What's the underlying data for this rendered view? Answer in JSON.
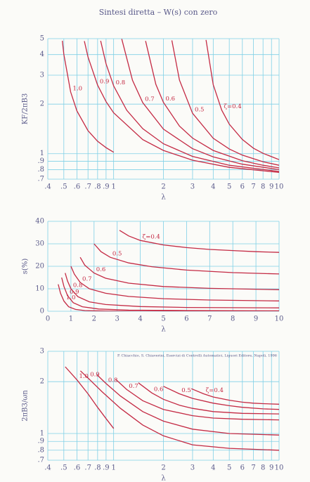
{
  "chart_data": [
    {
      "type": "line",
      "title": "Sintesi diretta – W(s) con zero",
      "xlabel": "λ",
      "ylabel": "KF/2πB3",
      "xscale": "log",
      "yscale": "log",
      "grid": true,
      "color": "#c42a44",
      "xlim": [
        0.4,
        10
      ],
      "ylim": [
        0.7,
        5
      ],
      "xticks": [
        {
          "value": 0.4,
          "label": ".4"
        },
        {
          "value": 0.5,
          "label": ".5"
        },
        {
          "value": 0.6,
          "label": ".6"
        },
        {
          "value": 0.7,
          "label": ".7"
        },
        {
          "value": 0.8,
          "label": ".8"
        },
        {
          "value": 0.9,
          "label": ".9"
        },
        1,
        2,
        3,
        4,
        5,
        6,
        7,
        8,
        9,
        10
      ],
      "yticks": [
        {
          "value": 0.7,
          "label": ".7"
        },
        {
          "value": 0.8,
          "label": ".8"
        },
        {
          "value": 0.9,
          "label": ".9"
        },
        1,
        2,
        3,
        4,
        5
      ],
      "series": [
        {
          "name": "ζ=0.4",
          "x": [
            3.62,
            4,
            4.5,
            5,
            6,
            7,
            8,
            10
          ],
          "values": [
            4.91,
            2.63,
            1.84,
            1.51,
            1.22,
            1.08,
            1.005,
            0.92
          ]
        },
        {
          "name": "0.5",
          "x": [
            2.25,
            2.5,
            3,
            4,
            5,
            6,
            8,
            10
          ],
          "values": [
            4.88,
            2.8,
            1.76,
            1.24,
            1.067,
            0.98,
            0.893,
            0.85
          ]
        },
        {
          "name": "0.6",
          "x": [
            1.56,
            1.8,
            2,
            2.5,
            3,
            4,
            6,
            8,
            10
          ],
          "values": [
            4.84,
            2.64,
            2.05,
            1.47,
            1.244,
            1.046,
            0.906,
            0.85,
            0.82
          ]
        },
        {
          "name": "0.7",
          "x": [
            1.12,
            1.3,
            1.5,
            2,
            3,
            4,
            6,
            10
          ],
          "values": [
            4.98,
            2.79,
            2.04,
            1.41,
            1.073,
            0.957,
            0.863,
            0.8
          ]
        },
        {
          "name": "0.8",
          "x": [
            0.835,
            0.9,
            1,
            1.2,
            1.5,
            2,
            3,
            5,
            10
          ],
          "values": [
            4.85,
            3.51,
            2.58,
            1.836,
            1.418,
            1.149,
            0.963,
            0.85,
            0.78
          ]
        },
        {
          "name": "0.9",
          "x": [
            0.665,
            0.7,
            0.8,
            0.9,
            1,
            1.5,
            2,
            3,
            5,
            10
          ],
          "values": [
            4.83,
            3.87,
            2.61,
            2.07,
            1.77,
            1.217,
            1.046,
            0.913,
            0.826,
            0.77
          ]
        },
        {
          "name": "1.0",
          "x": [
            0.49,
            0.5,
            0.55,
            0.6,
            0.7,
            0.8,
            0.9,
            1
          ],
          "values": [
            4.85,
            4.02,
            2.37,
            1.82,
            1.38,
            1.19,
            1.087,
            1.02
          ]
        }
      ]
    },
    {
      "type": "line",
      "xlabel": "λ",
      "ylabel": "s(%)",
      "xscale": "linear",
      "yscale": "linear",
      "grid": true,
      "color": "#c42a44",
      "xlim": [
        0,
        10
      ],
      "ylim": [
        0,
        40
      ],
      "xticks": [
        0,
        1,
        2,
        3,
        4,
        5,
        6,
        7,
        8,
        9,
        10
      ],
      "yticks": [
        0,
        10,
        20,
        30,
        40
      ],
      "series": [
        {
          "name": "ζ=0.4",
          "x": [
            3.1,
            3.5,
            4,
            5,
            6,
            7,
            8,
            9,
            10
          ],
          "values": [
            36,
            33.5,
            31.5,
            29.5,
            28.3,
            27.5,
            27,
            26.5,
            26.2
          ]
        },
        {
          "name": "0.5",
          "x": [
            2,
            2.3,
            2.7,
            3.5,
            4.5,
            6,
            8,
            10
          ],
          "values": [
            30,
            26.5,
            24,
            21.5,
            19.8,
            18.3,
            17.2,
            16.6
          ]
        },
        {
          "name": "0.6",
          "x": [
            1.4,
            1.6,
            2,
            2.5,
            3.5,
            5,
            7,
            10
          ],
          "values": [
            24,
            20.5,
            17,
            14.7,
            12.5,
            11,
            10.2,
            9.6
          ]
        },
        {
          "name": "0.7",
          "x": [
            1,
            1.15,
            1.4,
            1.8,
            2.5,
            3.5,
            5,
            7,
            10
          ],
          "values": [
            20,
            16.5,
            12.8,
            10,
            8,
            6.6,
            5.6,
            5,
            4.6
          ]
        },
        {
          "name": "0.8",
          "x": [
            0.75,
            0.85,
            1,
            1.3,
            1.8,
            2.5,
            4,
            6,
            10
          ],
          "values": [
            17,
            13.5,
            10,
            6.5,
            4.2,
            3,
            2.1,
            1.7,
            1.5
          ]
        },
        {
          "name": "0.9",
          "x": [
            0.6,
            0.7,
            0.85,
            1.1,
            1.5,
            2.2,
            3.5,
            6,
            10
          ],
          "values": [
            15,
            11,
            7,
            3.8,
            2,
            1,
            0.5,
            0.3,
            0.2
          ]
        },
        {
          "name": "1.0",
          "x": [
            0.45,
            0.55,
            0.7,
            0.9,
            1.2,
            1.6,
            2.5,
            4,
            10
          ],
          "values": [
            12,
            8,
            4.5,
            2,
            0.8,
            0.3,
            0.1,
            0,
            0
          ]
        }
      ]
    },
    {
      "type": "line",
      "xlabel": "λ",
      "ylabel": "2πB3/ωn",
      "annotation": "P. Chiacchio, S. Chiaverini, Esercizi di Controlli Automatici, Liguori Editore, Napoli, 1996",
      "xscale": "log",
      "yscale": "log",
      "grid": true,
      "color": "#c42a44",
      "xlim": [
        0.4,
        10
      ],
      "ylim": [
        0.7,
        3
      ],
      "xticks": [
        {
          "value": 0.4,
          "label": ".4"
        },
        {
          "value": 0.5,
          "label": ".5"
        },
        {
          "value": 0.6,
          "label": ".6"
        },
        {
          "value": 0.7,
          "label": ".7"
        },
        {
          "value": 0.8,
          "label": ".8"
        },
        {
          "value": 0.9,
          "label": ".9"
        },
        1,
        2,
        3,
        4,
        5,
        6,
        7,
        8,
        9,
        10
      ],
      "yticks": [
        {
          "value": 0.7,
          "label": ".7"
        },
        {
          "value": 0.8,
          "label": ".8"
        },
        {
          "value": 0.9,
          "label": ".9"
        },
        1,
        2,
        3
      ],
      "series": [
        {
          "name": "ζ=0.4",
          "x": [
            2.95,
            3.5,
            4,
            5,
            6,
            7,
            8,
            10
          ],
          "values": [
            1.82,
            1.7,
            1.63,
            1.56,
            1.52,
            1.5,
            1.49,
            1.48
          ]
        },
        {
          "name": "0.5",
          "x": [
            2,
            2.5,
            3,
            4,
            5,
            6,
            8,
            10
          ],
          "values": [
            1.88,
            1.7,
            1.6,
            1.5,
            1.45,
            1.42,
            1.39,
            1.38
          ]
        },
        {
          "name": "0.6",
          "x": [
            1.41,
            1.7,
            2,
            2.5,
            3,
            4,
            6,
            10
          ],
          "values": [
            1.97,
            1.72,
            1.58,
            1.46,
            1.4,
            1.34,
            1.31,
            1.3
          ]
        },
        {
          "name": "0.7",
          "x": [
            1.03,
            1.2,
            1.5,
            2,
            3,
            4,
            6,
            10
          ],
          "values": [
            2.06,
            1.8,
            1.55,
            1.38,
            1.27,
            1.23,
            1.21,
            1.2
          ]
        },
        {
          "name": "0.8",
          "x": [
            0.79,
            0.9,
            1.1,
            1.5,
            2,
            3,
            5,
            10
          ],
          "values": [
            2.2,
            1.95,
            1.65,
            1.34,
            1.18,
            1.06,
            1.0,
            0.98
          ]
        },
        {
          "name": "0.9",
          "x": [
            0.63,
            0.7,
            0.85,
            1.1,
            1.5,
            2,
            3,
            5,
            10
          ],
          "values": [
            2.31,
            2.1,
            1.75,
            1.4,
            1.12,
            0.97,
            0.86,
            0.82,
            0.8
          ]
        },
        {
          "name": "1.0",
          "x": [
            0.51,
            0.6,
            0.7,
            0.8,
            0.9,
            1
          ],
          "values": [
            2.44,
            2.05,
            1.7,
            1.42,
            1.22,
            1.07
          ]
        }
      ]
    }
  ]
}
